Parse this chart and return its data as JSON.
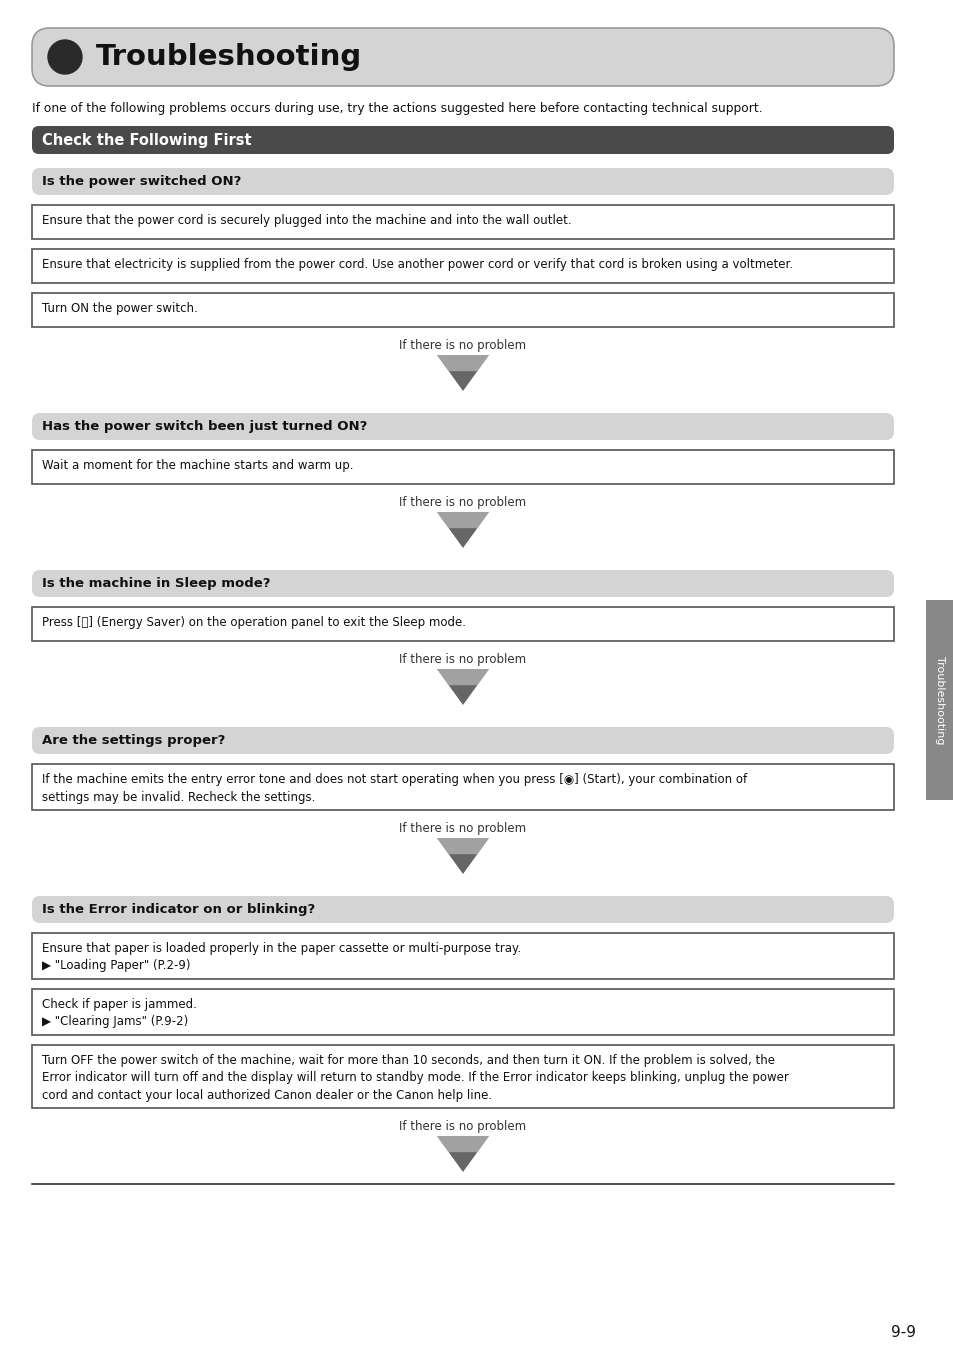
{
  "title": "Troubleshooting",
  "intro_text": "If one of the following problems occurs during use, try the actions suggested here before contacting technical support.",
  "section_header": "Check the Following First",
  "sections": [
    {
      "header": "Is the power switched ON?",
      "boxes": [
        "Ensure that the power cord is securely plugged into the machine and into the wall outlet.",
        "Ensure that electricity is supplied from the power cord. Use another power cord or verify that cord is broken using a voltmeter.",
        "Turn ON the power switch."
      ],
      "arrow_text": "If there is no problem"
    },
    {
      "header": "Has the power switch been just turned ON?",
      "boxes": [
        "Wait a moment for the machine starts and warm up."
      ],
      "arrow_text": "If there is no problem"
    },
    {
      "header": "Is the machine in Sleep mode?",
      "boxes": [
        "Press [ⓧ] (Energy Saver) on the operation panel to exit the Sleep mode."
      ],
      "arrow_text": "If there is no problem"
    },
    {
      "header": "Are the settings proper?",
      "boxes": [
        "If the machine emits the entry error tone and does not start operating when you press [◉] (Start), your combination of\nsettings may be invalid. Recheck the settings."
      ],
      "arrow_text": "If there is no problem"
    },
    {
      "header": "Is the Error indicator on or blinking?",
      "boxes": [
        "Ensure that paper is loaded properly in the paper cassette or multi-purpose tray.\n▶ \"Loading Paper\" (P.2-9)",
        "Check if paper is jammed.\n▶ \"Clearing Jams\" (P.9-2)",
        "Turn OFF the power switch of the machine, wait for more than 10 seconds, and then turn it ON. If the problem is solved, the\nError indicator will turn off and the display will return to standby mode. If the Error indicator keeps blinking, unplug the power\ncord and contact your local authorized Canon dealer or the Canon help line."
      ],
      "arrow_text": "If there is no problem"
    }
  ],
  "page_number": "9-9",
  "side_label": "Troubleshooting",
  "bg_color": "#ffffff",
  "title_bg": "#d4d4d4",
  "title_border": "#999999",
  "section_header_bg": "#4a4a4a",
  "subsection_bg": "#d4d4d4",
  "box_border": "#555555",
  "side_tab_color": "#888888",
  "bottom_line_color": "#333333"
}
